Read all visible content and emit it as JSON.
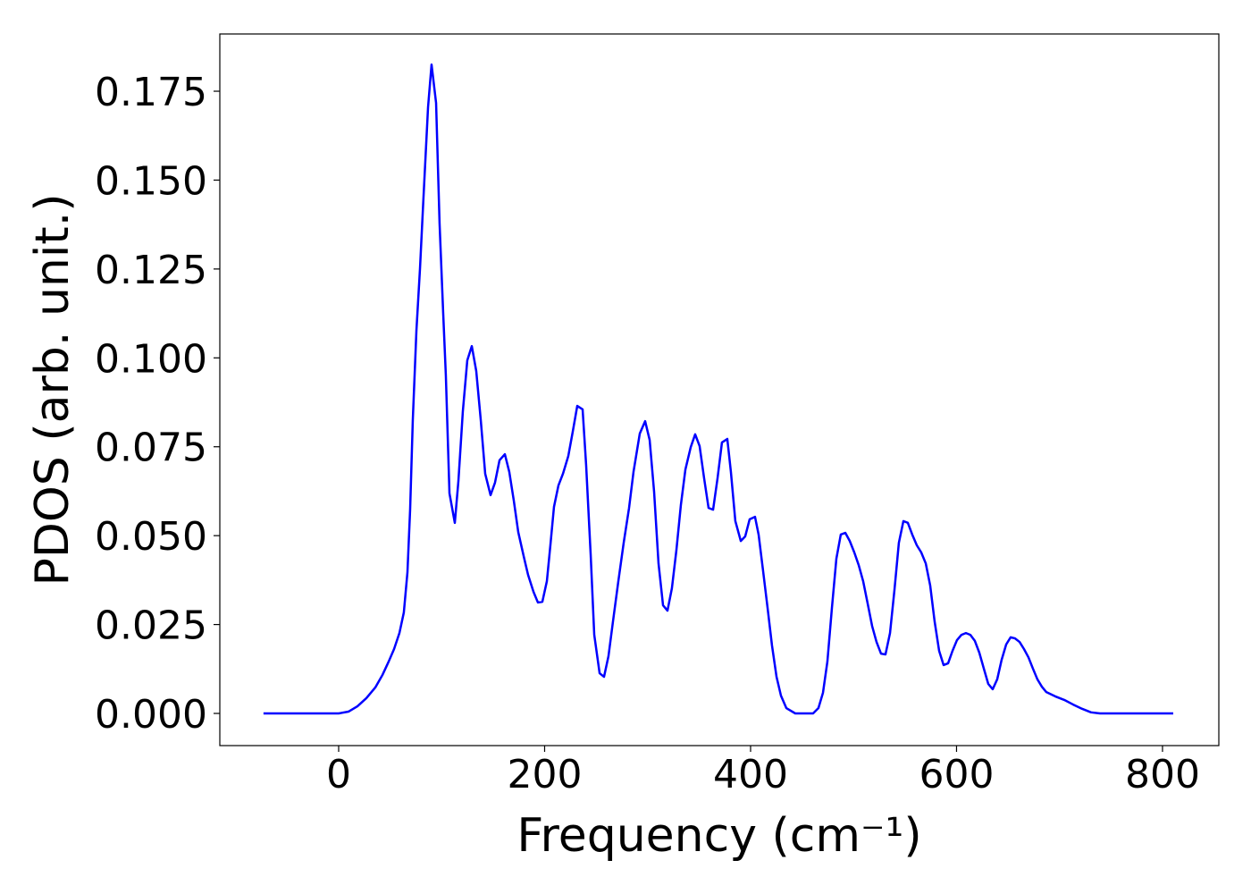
{
  "chart_data": {
    "type": "line",
    "xlabel": "Frequency (cm⁻¹)",
    "ylabel": "PDOS (arb. unit.)",
    "color": "#0000ff",
    "x": [
      -73,
      0,
      9.5,
      18.2,
      26.9,
      35.6,
      42.5,
      48.6,
      53.8,
      59.0,
      63.3,
      66.8,
      69.4,
      72.0,
      75.5,
      79.0,
      82.4,
      86.8,
      90.2,
      94.6,
      98.0,
      101.5,
      104.1,
      107.6,
      112.8,
      116.3,
      120.6,
      124.9,
      129.3,
      133.6,
      138.0,
      142.3,
      147.5,
      151.8,
      156.2,
      161.4,
      165.7,
      170.1,
      174.4,
      179.6,
      183.9,
      189.2,
      193.5,
      197.8,
      202.2,
      205.6,
      209.1,
      213.4,
      217.8,
      223.0,
      227.3,
      231.7,
      236.9,
      240.3,
      244.7,
      248.2,
      253.4,
      257.7,
      262.0,
      266.4,
      271.6,
      276.8,
      282.0,
      286.3,
      292.4,
      297.6,
      302.0,
      306.3,
      310.6,
      315.0,
      319.3,
      323.6,
      328.0,
      332.3,
      336.7,
      341.9,
      346.2,
      350.5,
      354.9,
      359.2,
      363.6,
      367.9,
      372.2,
      377.4,
      380.9,
      385.2,
      390.5,
      394.8,
      399.1,
      404.3,
      407.8,
      412.1,
      416.5,
      420.8,
      425.2,
      429.5,
      434.7,
      443.4,
      460.7,
      465.9,
      470.3,
      474.6,
      479.0,
      483.3,
      487.6,
      492.0,
      496.3,
      500.7,
      505.0,
      509.3,
      513.7,
      518.0,
      522.3,
      526.7,
      531.0,
      535.4,
      539.7,
      544.0,
      548.4,
      552.7,
      557.0,
      561.4,
      565.7,
      570.1,
      574.4,
      578.7,
      583.1,
      587.4,
      591.8,
      596.1,
      600.4,
      604.8,
      609.1,
      613.4,
      617.8,
      622.1,
      626.5,
      630.8,
      635.1,
      639.5,
      643.8,
      648.2,
      652.5,
      656.8,
      661.2,
      665.5,
      669.8,
      674.2,
      678.5,
      682.9,
      687.2,
      695.8,
      704.6,
      713.2,
      721.9,
      730.6,
      739.3,
      810.4
    ],
    "values": [
      0,
      0,
      0.0005,
      0.002,
      0.0043,
      0.0073,
      0.0108,
      0.0146,
      0.0181,
      0.0226,
      0.0284,
      0.0397,
      0.0573,
      0.0825,
      0.1076,
      0.1252,
      0.1453,
      0.1705,
      0.1825,
      0.1717,
      0.1378,
      0.1126,
      0.095,
      0.0619,
      0.0536,
      0.0654,
      0.085,
      0.0993,
      0.1033,
      0.0963,
      0.0825,
      0.0674,
      0.0614,
      0.0649,
      0.0712,
      0.0729,
      0.0679,
      0.0598,
      0.051,
      0.0443,
      0.039,
      0.0342,
      0.0312,
      0.0314,
      0.0372,
      0.0473,
      0.0581,
      0.0641,
      0.0674,
      0.0724,
      0.0792,
      0.0865,
      0.0855,
      0.0699,
      0.0448,
      0.0221,
      0.0113,
      0.0103,
      0.0161,
      0.0259,
      0.0372,
      0.048,
      0.0578,
      0.0679,
      0.0787,
      0.0822,
      0.0769,
      0.0624,
      0.0422,
      0.0304,
      0.0289,
      0.0352,
      0.046,
      0.0586,
      0.0686,
      0.0749,
      0.0785,
      0.0752,
      0.0661,
      0.0578,
      0.0573,
      0.0661,
      0.0762,
      0.0772,
      0.0679,
      0.0541,
      0.0485,
      0.0498,
      0.0546,
      0.0553,
      0.0503,
      0.0402,
      0.0297,
      0.0191,
      0.0103,
      0.005,
      0.0015,
      0,
      0,
      0.0015,
      0.0058,
      0.0146,
      0.0297,
      0.0435,
      0.0503,
      0.0508,
      0.0485,
      0.0453,
      0.0417,
      0.0372,
      0.0309,
      0.0246,
      0.0201,
      0.0168,
      0.0166,
      0.0226,
      0.0347,
      0.048,
      0.0541,
      0.0536,
      0.0503,
      0.0473,
      0.0453,
      0.0422,
      0.036,
      0.0259,
      0.0176,
      0.0136,
      0.0141,
      0.0176,
      0.0206,
      0.0221,
      0.0226,
      0.0221,
      0.0204,
      0.0171,
      0.0126,
      0.0083,
      0.0068,
      0.0096,
      0.0151,
      0.0194,
      0.0214,
      0.0211,
      0.0201,
      0.0181,
      0.0158,
      0.0126,
      0.0096,
      0.0075,
      0.006,
      0.0048,
      0.0038,
      0.0025,
      0.0013,
      0.0003,
      0,
      0
    ],
    "xlim": [
      -115.4,
      854.7
    ],
    "ylim": [
      -0.00905,
      0.1911
    ],
    "xticks": [
      0,
      200,
      400,
      600,
      800
    ],
    "yticks": [
      {
        "value": 0,
        "label": "0.000"
      },
      0.025,
      {
        "value": 0.05,
        "label": "0.050"
      },
      0.075,
      {
        "value": 0.1,
        "label": "0.100"
      },
      0.125,
      {
        "value": 0.15,
        "label": "0.150"
      },
      0.175
    ],
    "grid": false
  }
}
